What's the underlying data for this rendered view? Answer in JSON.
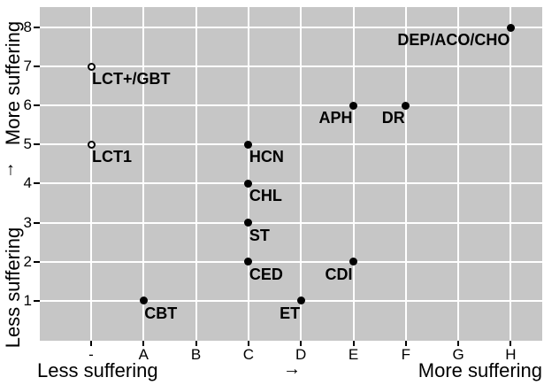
{
  "chart_data": {
    "type": "scatter",
    "title": "",
    "x_categories": [
      "-",
      "A",
      "B",
      "C",
      "D",
      "E",
      "F",
      "G",
      "H"
    ],
    "y_ticks": [
      1,
      2,
      3,
      4,
      5,
      6,
      7,
      8
    ],
    "ylim": [
      0,
      8.5
    ],
    "grid": true,
    "legend": false,
    "axis_titles": {
      "y_top": "More suffering",
      "y_arrow": "↑",
      "y_bottom": "Less suffering",
      "x_left": "Less suffering",
      "x_arrow": "→",
      "x_right": "More suffering"
    },
    "colors": {
      "panel_background": "#c6c6c6",
      "gridline": "#ffffff",
      "point": "#000000",
      "open_point_fill": "#ffffff",
      "tick": "#000000",
      "text": "#000000"
    },
    "points": [
      {
        "label": "DEP/ACO/CHO",
        "x": "H",
        "y": 8,
        "marker": "filled",
        "label_anchor": "end"
      },
      {
        "label": "LCT+/GBT",
        "x": "-",
        "y": 7,
        "marker": "open",
        "label_anchor": "start"
      },
      {
        "label": "APH",
        "x": "E",
        "y": 6,
        "marker": "filled",
        "label_anchor": "end"
      },
      {
        "label": "DR",
        "x": "F",
        "y": 6,
        "marker": "filled",
        "label_anchor": "end"
      },
      {
        "label": "LCT1",
        "x": "-",
        "y": 5,
        "marker": "open",
        "label_anchor": "start"
      },
      {
        "label": "HCN",
        "x": "C",
        "y": 5,
        "marker": "filled",
        "label_anchor": "start"
      },
      {
        "label": "CHL",
        "x": "C",
        "y": 4,
        "marker": "filled",
        "label_anchor": "start"
      },
      {
        "label": "ST",
        "x": "C",
        "y": 3,
        "marker": "filled",
        "label_anchor": "start"
      },
      {
        "label": "CED",
        "x": "C",
        "y": 2,
        "marker": "filled",
        "label_anchor": "start"
      },
      {
        "label": "CDI",
        "x": "E",
        "y": 2,
        "marker": "filled",
        "label_anchor": "end"
      },
      {
        "label": "CBT",
        "x": "A",
        "y": 1,
        "marker": "filled",
        "label_anchor": "start"
      },
      {
        "label": "ET",
        "x": "D",
        "y": 1,
        "marker": "filled",
        "label_anchor": "end"
      }
    ]
  }
}
